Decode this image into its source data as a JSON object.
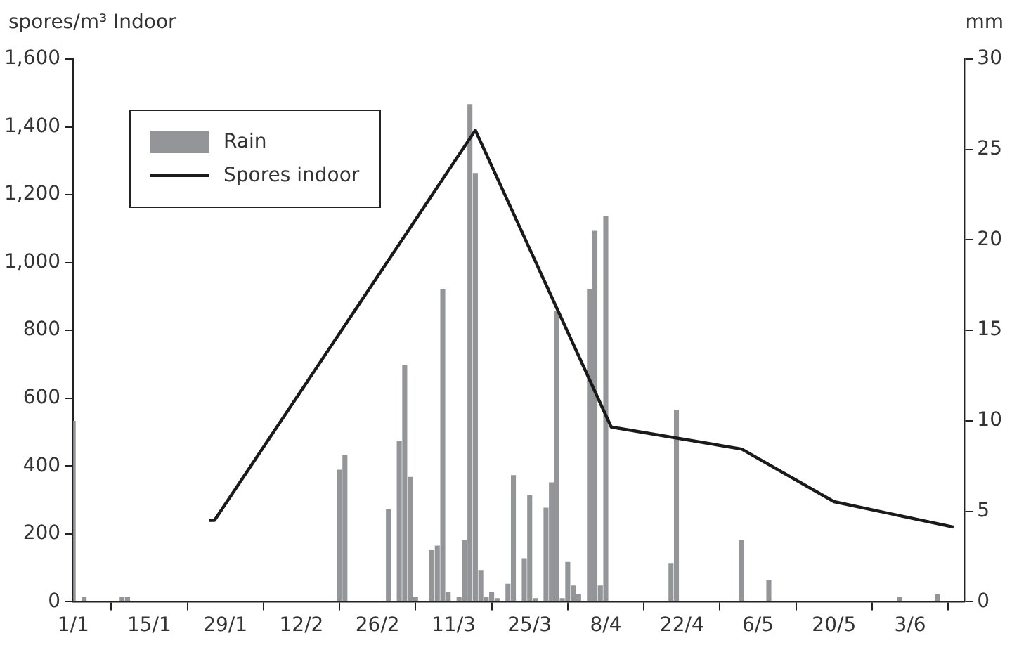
{
  "chart_data": {
    "type": "bar",
    "ylabel": "spores/m³ Indoor",
    "y2label": "mm",
    "legend": "top left",
    "grid": false,
    "xlim": [
      "--01-01",
      "--06-13"
    ],
    "xticks": [
      {
        "value": "--01-01",
        "label": "1/1"
      },
      {
        "value": "--01-15",
        "label": "15/1"
      },
      {
        "value": "--01-29",
        "label": "29/1"
      },
      {
        "value": "--02-12",
        "label": "12/2"
      },
      {
        "value": "--02-26",
        "label": "26/2"
      },
      {
        "value": "--03-11",
        "label": "11/3"
      },
      {
        "value": "--03-25",
        "label": "25/3"
      },
      {
        "value": "--04-08",
        "label": "8/4"
      },
      {
        "value": "--04-22",
        "label": "22/4"
      },
      {
        "value": "--05-06",
        "label": "6/5"
      },
      {
        "value": "--05-20",
        "label": "20/5"
      },
      {
        "value": "--06-03",
        "label": "3/6"
      }
    ],
    "ylim": [
      0,
      1600
    ],
    "yticks": [
      0,
      200,
      400,
      600,
      800,
      {
        "value": 1000,
        "label": "1,000"
      },
      {
        "value": 1200,
        "label": "1,200"
      },
      {
        "value": 1400,
        "label": "1,400"
      },
      {
        "value": 1600,
        "label": "1,600"
      }
    ],
    "y2lim": [
      0,
      30
    ],
    "y2ticks": [
      0,
      5,
      10,
      15,
      20,
      25,
      30
    ],
    "series": [
      {
        "name": "Rain",
        "axis": "y2",
        "color": "#939598",
        "x": [
          "--01-01",
          "--01-03",
          "--01-10",
          "--01-11",
          "--02-19",
          "--02-20",
          "--02-28",
          "--03-01",
          "--03-02",
          "--03-03",
          "--03-04",
          "--03-07",
          "--03-08",
          "--03-09",
          "--03-10",
          "--03-12",
          "--03-13",
          "--03-14",
          "--03-15",
          "--03-16",
          "--03-17",
          "--03-18",
          "--03-19",
          "--03-21",
          "--03-22",
          "--03-24",
          "--03-25",
          "--03-26",
          "--03-28",
          "--03-29",
          "--03-30",
          "--03-31",
          "--04-01",
          "--04-02",
          "--04-03",
          "--04-05",
          "--04-06",
          "--04-07",
          "--04-08",
          "--04-20",
          "--04-21",
          "--05-03",
          "--05-08",
          "--06-01",
          "--06-08"
        ],
        "values": [
          10,
          0.25,
          0.25,
          0.25,
          7.3,
          8.1,
          5.1,
          8.9,
          13.1,
          6.9,
          0.25,
          2.85,
          3.1,
          17.3,
          0.55,
          0.25,
          3.4,
          27.5,
          23.7,
          1.75,
          0.25,
          0.55,
          0.2,
          1,
          7,
          2.4,
          5.9,
          0.2,
          5.2,
          6.6,
          16.1,
          0.2,
          2.2,
          0.9,
          0.4,
          17.3,
          20.5,
          0.9,
          21.3,
          2.1,
          10.6,
          3.4,
          1.2,
          0.25,
          0.4
        ]
      },
      {
        "name": "Spores indoor",
        "type": "line",
        "axis": "y",
        "color": "#1a1a1a",
        "line_style": "solid",
        "marker": "none",
        "x": [
          "--01-26",
          "--01-27",
          "--03-15",
          "--04-09",
          "--05-03",
          "--05-20",
          "--06-11"
        ],
        "values": [
          240,
          240,
          1390,
          515,
          450,
          295,
          220
        ]
      }
    ]
  }
}
